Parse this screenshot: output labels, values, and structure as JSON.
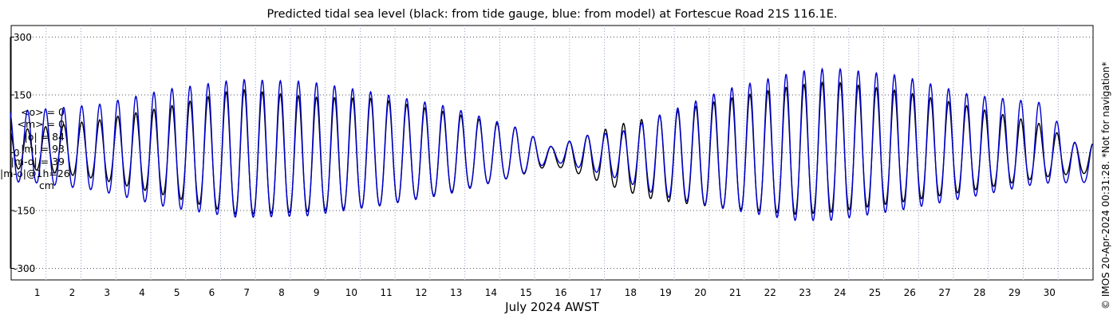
{
  "chart_data": {
    "type": "line",
    "title": "Predicted tidal sea level (black: from tide gauge, blue: from model) at Fortescue Road 21S 116.1E.",
    "xlabel": "July 2024 AWST",
    "ylabel": "",
    "xlim": [
      "2024-06-30T12:00",
      "2024-07-31T12:00"
    ],
    "ylim": [
      -330,
      330
    ],
    "yticks": [
      300,
      150,
      0,
      -150,
      -300
    ],
    "xticks": [
      "1",
      "2",
      "3",
      "4",
      "5",
      "6",
      "7",
      "8",
      "9",
      "10",
      "11",
      "12",
      "13",
      "14",
      "15",
      "16",
      "17",
      "18",
      "19",
      "20",
      "21",
      "22",
      "23",
      "24",
      "25",
      "26",
      "27",
      "28",
      "29",
      "30"
    ],
    "grid": true,
    "units": "cm",
    "series": [
      {
        "role": "tide gauge",
        "color": "#000000",
        "envelope_x": [
          "2024-07-01",
          "2024-07-03",
          "2024-07-05",
          "2024-07-07",
          "2024-07-09",
          "2024-07-11",
          "2024-07-13",
          "2024-07-15",
          "2024-07-16",
          "2024-07-17",
          "2024-07-18",
          "2024-07-19",
          "2024-07-21",
          "2024-07-23",
          "2024-07-24",
          "2024-07-26",
          "2024-07-28",
          "2024-07-30",
          "2024-07-31"
        ],
        "high_water_cm": [
          62,
          85,
          120,
          165,
          145,
          140,
          105,
          65,
          15,
          45,
          75,
          95,
          140,
          175,
          185,
          160,
          120,
          75,
          25
        ],
        "low_water_cm": [
          -50,
          -80,
          -130,
          -185,
          -175,
          -160,
          -120,
          -70,
          -35,
          -70,
          -110,
          -140,
          -165,
          -185,
          -180,
          -150,
          -115,
          -75,
          -60
        ]
      },
      {
        "role": "model",
        "color": "#0000d0",
        "envelope_x": [
          "2024-07-01",
          "2024-07-03",
          "2024-07-05",
          "2024-07-07",
          "2024-07-09",
          "2024-07-11",
          "2024-07-13",
          "2024-07-15",
          "2024-07-16",
          "2024-07-17",
          "2024-07-18",
          "2024-07-19",
          "2024-07-21",
          "2024-07-23",
          "2024-07-24",
          "2024-07-26",
          "2024-07-28",
          "2024-07-30",
          "2024-07-31"
        ],
        "high_water_cm": [
          110,
          125,
          165,
          190,
          185,
          155,
          120,
          65,
          15,
          45,
          55,
          95,
          165,
          210,
          220,
          200,
          150,
          130,
          25
        ],
        "low_water_cm": [
          -90,
          -115,
          -165,
          -195,
          -190,
          -160,
          -125,
          -70,
          -25,
          -50,
          -80,
          -125,
          -170,
          -205,
          -205,
          -175,
          -135,
          -95,
          -85
        ]
      }
    ]
  },
  "stats": [
    "<o> = 0",
    "<m> = 0",
    "|o| = 84",
    "|m| = 93",
    "|m-o| = 39",
    "|m-o|@1h=26",
    "cm"
  ],
  "credit": "© IMOS 20-Apr-2024 00:31:28. *Not for navigation*"
}
